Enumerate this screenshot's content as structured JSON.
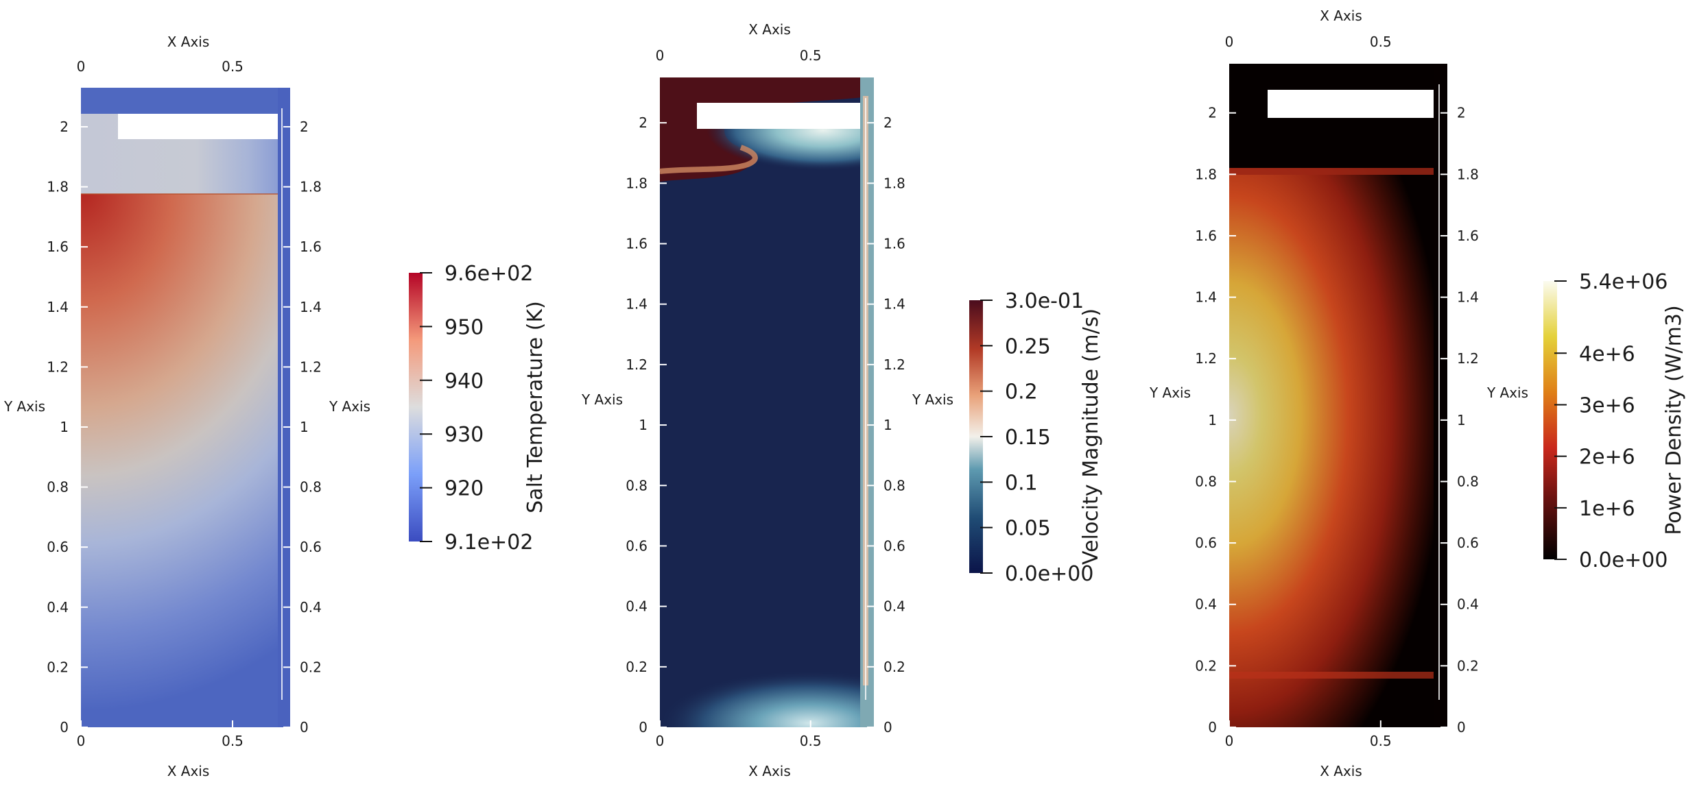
{
  "chart_data": [
    {
      "type": "heatmap",
      "field": "temperature",
      "x_axis_label": "X Axis",
      "y_axis_label": "Y Axis",
      "x_ticks": [
        "0",
        "0.5"
      ],
      "y_ticks": [
        "0",
        "0.2",
        "0.4",
        "0.6",
        "0.8",
        "1",
        "1.2",
        "1.4",
        "1.6",
        "1.8",
        "2"
      ],
      "x_range": [
        0,
        0.69
      ],
      "y_range": [
        0,
        2.13
      ],
      "colorbar": {
        "title": "Salt Temperature (K)",
        "colormap": "cool-to-warm",
        "range": [
          910,
          960
        ],
        "tick_labels": [
          "9.6e+02",
          "950",
          "940",
          "930",
          "920",
          "9.1e+02"
        ],
        "tick_values": [
          960,
          950,
          940,
          930,
          920,
          910
        ]
      }
    },
    {
      "type": "heatmap",
      "field": "velocity",
      "x_axis_label": "X Axis",
      "y_axis_label": "Y Axis",
      "x_ticks": [
        "0",
        "0.5"
      ],
      "y_ticks": [
        "0",
        "0.2",
        "0.4",
        "0.6",
        "0.8",
        "1",
        "1.2",
        "1.4",
        "1.6",
        "1.8",
        "2"
      ],
      "x_range": [
        0,
        0.71
      ],
      "y_range": [
        0,
        2.15
      ],
      "colorbar": {
        "title": "Velocity  Magnitude (m/s)",
        "colormap": "blue-orange-divergent",
        "range": [
          0,
          0.3
        ],
        "tick_labels": [
          "3.0e-01",
          "0.25",
          "0.2",
          "0.15",
          "0.1",
          "0.05",
          "0.0e+00"
        ],
        "tick_values": [
          0.3,
          0.25,
          0.2,
          0.15,
          0.1,
          0.05,
          0
        ]
      }
    },
    {
      "type": "heatmap",
      "field": "power",
      "x_axis_label": "X Axis",
      "y_axis_label": "Y Axis",
      "x_ticks": [
        "0",
        "0.5"
      ],
      "y_ticks": [
        "0",
        "0.2",
        "0.4",
        "0.6",
        "0.8",
        "1",
        "1.2",
        "1.4",
        "1.6",
        "1.8",
        "2"
      ],
      "x_range": [
        0,
        0.72
      ],
      "y_range": [
        0,
        2.16
      ],
      "colorbar": {
        "title": "Power Density (W/m3)",
        "colormap": "black-body",
        "range": [
          0,
          5400000
        ],
        "tick_labels": [
          "5.4e+06",
          "4e+6",
          "3e+6",
          "2e+6",
          "1e+6",
          "0.0e+00"
        ],
        "tick_values": [
          5400000,
          4000000,
          3000000,
          2000000,
          1000000,
          0
        ]
      }
    }
  ]
}
